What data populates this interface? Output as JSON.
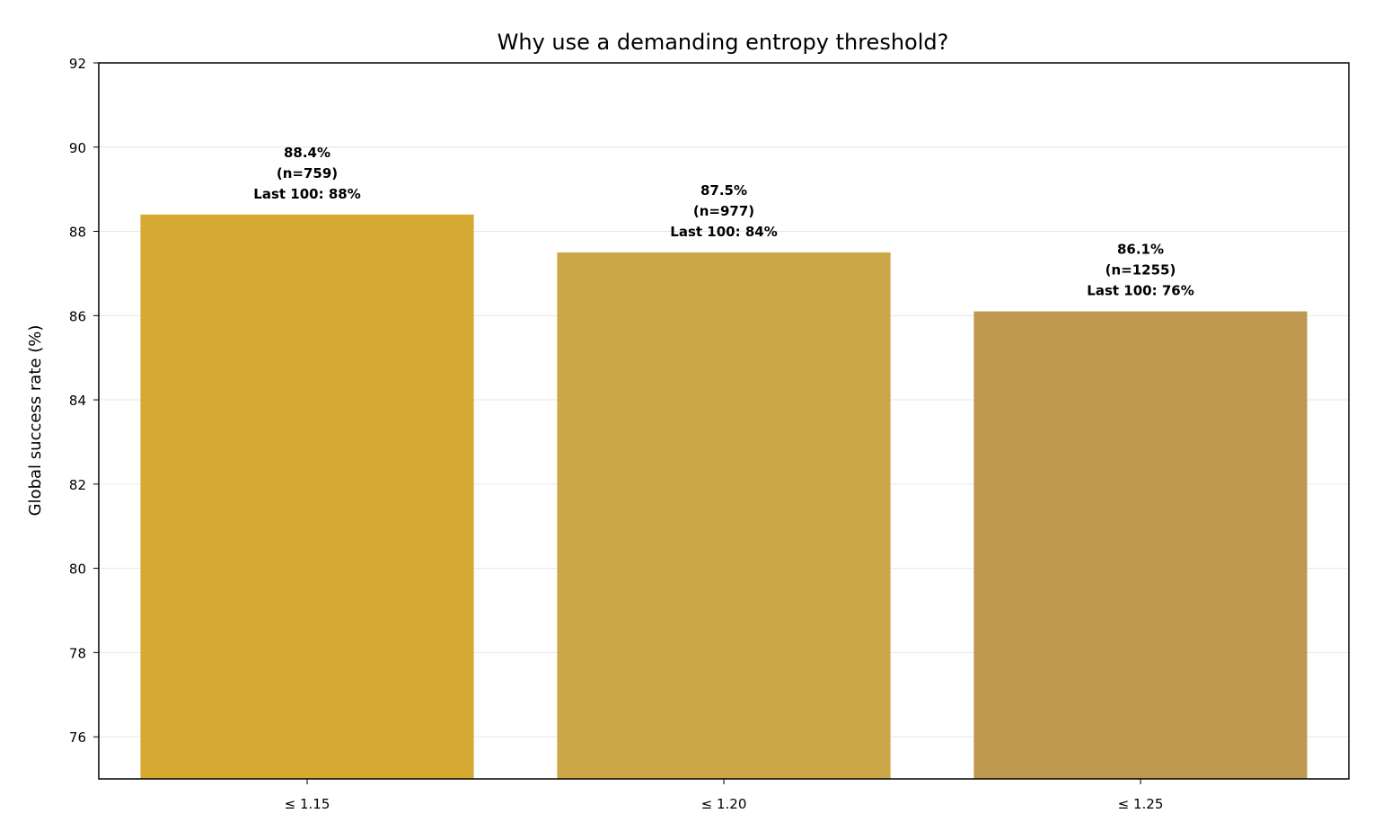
{
  "chart_data": {
    "type": "bar",
    "title": "Why use a demanding entropy threshold?",
    "xlabel": "",
    "ylabel": "Global success rate (%)",
    "categories": [
      "≤ 1.15",
      "≤ 1.20",
      "≤ 1.25"
    ],
    "values": [
      88.4,
      87.5,
      86.1
    ],
    "ylim": [
      75,
      92
    ],
    "yticks": [
      76,
      78,
      80,
      82,
      84,
      86,
      88,
      90,
      92
    ],
    "grid": "y",
    "colors": [
      "#d6a933",
      "#cca748",
      "#bf984f"
    ],
    "data_labels": [
      [
        "88.4%",
        "(n=759)",
        "Last 100: 88%"
      ],
      [
        "87.5%",
        "(n=977)",
        "Last 100: 84%"
      ],
      [
        "86.1%",
        "(n=1255)",
        "Last 100: 76%"
      ]
    ]
  }
}
